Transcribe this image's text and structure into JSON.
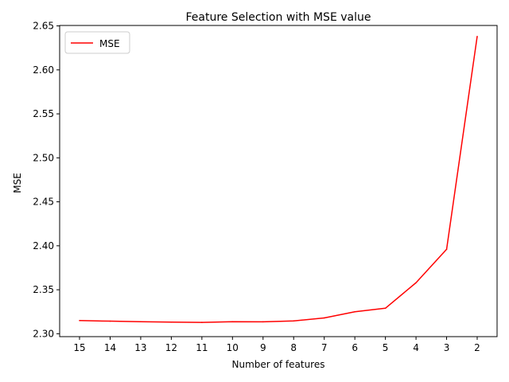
{
  "chart_data": {
    "type": "line",
    "title": "Feature Selection with MSE value",
    "xlabel": "Number of features",
    "ylabel": "MSE",
    "x": [
      "15",
      "14",
      "13",
      "12",
      "11",
      "10",
      "9",
      "8",
      "7",
      "6",
      "5",
      "4",
      "3",
      "2"
    ],
    "series": [
      {
        "name": "MSE",
        "color": "#ff0000",
        "values": [
          2.315,
          2.3143,
          2.3137,
          2.3132,
          2.3129,
          2.3137,
          2.3136,
          2.3146,
          2.318,
          2.325,
          2.329,
          2.358,
          2.396,
          2.638
        ]
      }
    ],
    "yticks": [
      "2.30",
      "2.35",
      "2.40",
      "2.45",
      "2.50",
      "2.55",
      "2.60",
      "2.65"
    ],
    "ylim": [
      2.2967,
      2.6505
    ],
    "grid": false,
    "legend_position": "upper-left"
  }
}
